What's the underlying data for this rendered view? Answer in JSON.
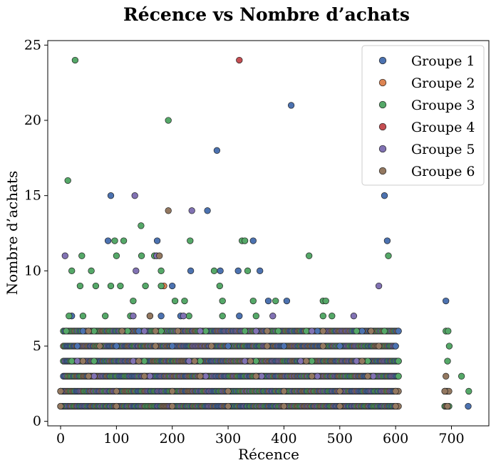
{
  "chart_data": {
    "type": "scatter",
    "title": "Récence vs Nombre d’achats",
    "xlabel": "Récence",
    "ylabel": "Nombre d’achats",
    "xlim": [
      -23,
      767
    ],
    "ylim": [
      -0.3,
      25.3
    ],
    "xticks": [
      0,
      100,
      200,
      300,
      400,
      500,
      600,
      700
    ],
    "yticks": [
      0,
      5,
      10,
      15,
      20,
      25
    ],
    "grid": false,
    "legend_position": "top-right",
    "colors": {
      "Groupe 1": "#4c72b0",
      "Groupe 2": "#dd8452",
      "Groupe 3": "#55a868",
      "Groupe 4": "#c44e52",
      "Groupe 5": "#8172b3",
      "Groupe 6": "#937860"
    },
    "series": [
      {
        "name": "Groupe 1",
        "points": [
          [
            413,
            21
          ],
          [
            280,
            18
          ],
          [
            90,
            15
          ],
          [
            580,
            15
          ],
          [
            263,
            14
          ],
          [
            85,
            12
          ],
          [
            173,
            12
          ],
          [
            345,
            12
          ],
          [
            585,
            12
          ],
          [
            233,
            10
          ],
          [
            318,
            10
          ],
          [
            357,
            10
          ],
          [
            286,
            10
          ],
          [
            200,
            9
          ],
          [
            372,
            8
          ],
          [
            405,
            8
          ],
          [
            690,
            8
          ],
          [
            320,
            7
          ],
          [
            180,
            7
          ],
          [
            20,
            7
          ],
          [
            215,
            7
          ],
          [
            40,
            6
          ],
          [
            140,
            6
          ],
          [
            250,
            6
          ],
          [
            350,
            6
          ],
          [
            460,
            6
          ],
          [
            540,
            6
          ],
          [
            605,
            6
          ],
          [
            30,
            5
          ],
          [
            100,
            5
          ],
          [
            200,
            5
          ],
          [
            300,
            5
          ],
          [
            400,
            5
          ],
          [
            500,
            5
          ],
          [
            600,
            5
          ],
          [
            730,
            1
          ]
        ]
      },
      {
        "name": "Groupe 2",
        "points": [
          [
            185,
            9
          ]
        ]
      },
      {
        "name": "Groupe 3",
        "points": [
          [
            26,
            24
          ],
          [
            193,
            20
          ],
          [
            13,
            16
          ],
          [
            144,
            13
          ],
          [
            97,
            12
          ],
          [
            113,
            12
          ],
          [
            232,
            12
          ],
          [
            325,
            12
          ],
          [
            330,
            12
          ],
          [
            38,
            11
          ],
          [
            100,
            11
          ],
          [
            145,
            11
          ],
          [
            168,
            11
          ],
          [
            445,
            11
          ],
          [
            587,
            11
          ],
          [
            20,
            10
          ],
          [
            55,
            10
          ],
          [
            180,
            10
          ],
          [
            275,
            10
          ],
          [
            335,
            10
          ],
          [
            35,
            9
          ],
          [
            63,
            9
          ],
          [
            90,
            9
          ],
          [
            107,
            9
          ],
          [
            152,
            9
          ],
          [
            180,
            9
          ],
          [
            285,
            9
          ],
          [
            130,
            8
          ],
          [
            205,
            8
          ],
          [
            222,
            8
          ],
          [
            290,
            8
          ],
          [
            345,
            8
          ],
          [
            385,
            8
          ],
          [
            470,
            8
          ],
          [
            475,
            8
          ],
          [
            15,
            7
          ],
          [
            40,
            7
          ],
          [
            80,
            7
          ],
          [
            125,
            7
          ],
          [
            160,
            7
          ],
          [
            230,
            7
          ],
          [
            290,
            7
          ],
          [
            350,
            7
          ],
          [
            470,
            7
          ],
          [
            486,
            7
          ],
          [
            10,
            6
          ],
          [
            60,
            6
          ],
          [
            120,
            6
          ],
          [
            180,
            6
          ],
          [
            260,
            6
          ],
          [
            330,
            6
          ],
          [
            390,
            6
          ],
          [
            440,
            6
          ],
          [
            530,
            6
          ],
          [
            580,
            6
          ],
          [
            690,
            6
          ],
          [
            694,
            6
          ],
          [
            696,
            5
          ],
          [
            20,
            4
          ],
          [
            60,
            4
          ],
          [
            150,
            4
          ],
          [
            250,
            4
          ],
          [
            350,
            4
          ],
          [
            450,
            4
          ],
          [
            550,
            4
          ],
          [
            605,
            4
          ],
          [
            693,
            4
          ],
          [
            605,
            3
          ],
          [
            718,
            3
          ],
          [
            731,
            2
          ]
        ]
      },
      {
        "name": "Groupe 4",
        "points": [
          [
            320,
            24
          ]
        ]
      },
      {
        "name": "Groupe 5",
        "points": [
          [
            133,
            15
          ],
          [
            235,
            14
          ],
          [
            8,
            11
          ],
          [
            135,
            10
          ],
          [
            172,
            11
          ],
          [
            570,
            9
          ],
          [
            130,
            7
          ],
          [
            220,
            7
          ],
          [
            380,
            7
          ],
          [
            525,
            7
          ],
          [
            50,
            6
          ],
          [
            150,
            6
          ],
          [
            250,
            6
          ],
          [
            350,
            6
          ],
          [
            450,
            6
          ],
          [
            555,
            6
          ],
          [
            30,
            4
          ],
          [
            130,
            4
          ],
          [
            230,
            4
          ],
          [
            330,
            4
          ],
          [
            430,
            4
          ],
          [
            530,
            4
          ],
          [
            60,
            3
          ],
          [
            160,
            3
          ],
          [
            260,
            3
          ],
          [
            360,
            3
          ],
          [
            460,
            3
          ],
          [
            560,
            3
          ]
        ]
      },
      {
        "name": "Groupe 6",
        "points": [
          [
            193,
            14
          ],
          [
            177,
            11
          ],
          [
            160,
            7
          ],
          [
            50,
            6
          ],
          [
            110,
            6
          ],
          [
            170,
            6
          ],
          [
            210,
            6
          ],
          [
            370,
            6
          ],
          [
            470,
            6
          ],
          [
            556,
            6
          ],
          [
            70,
            5
          ],
          [
            170,
            5
          ],
          [
            270,
            5
          ],
          [
            370,
            5
          ],
          [
            470,
            5
          ],
          [
            570,
            5
          ],
          [
            40,
            4
          ],
          [
            140,
            4
          ],
          [
            240,
            4
          ],
          [
            340,
            4
          ],
          [
            440,
            4
          ],
          [
            540,
            4
          ],
          [
            50,
            3
          ],
          [
            150,
            3
          ],
          [
            250,
            3
          ],
          [
            350,
            3
          ],
          [
            450,
            3
          ],
          [
            550,
            3
          ],
          [
            690,
            3
          ],
          [
            0,
            2
          ],
          [
            100,
            2
          ],
          [
            200,
            2
          ],
          [
            300,
            2
          ],
          [
            400,
            2
          ],
          [
            500,
            2
          ],
          [
            600,
            2
          ],
          [
            688,
            2
          ],
          [
            0,
            1
          ],
          [
            100,
            1
          ],
          [
            200,
            1
          ],
          [
            300,
            1
          ],
          [
            400,
            1
          ],
          [
            500,
            1
          ],
          [
            600,
            1
          ],
          [
            693,
            1
          ]
        ]
      }
    ],
    "dense_bands": [
      {
        "y": 1,
        "from": 0,
        "to": 605,
        "series": [
          "Groupe 1",
          "Groupe 3",
          "Groupe 5",
          "Groupe 6"
        ]
      },
      {
        "y": 1,
        "from": 688,
        "to": 697,
        "series": [
          "Groupe 3",
          "Groupe 6"
        ]
      },
      {
        "y": 2,
        "from": 0,
        "to": 605,
        "series": [
          "Groupe 1",
          "Groupe 3",
          "Groupe 5",
          "Groupe 6"
        ]
      },
      {
        "y": 2,
        "from": 688,
        "to": 696,
        "series": [
          "Groupe 6"
        ]
      },
      {
        "y": 3,
        "from": 5,
        "to": 605,
        "series": [
          "Groupe 1",
          "Groupe 3",
          "Groupe 5",
          "Groupe 6"
        ]
      },
      {
        "y": 4,
        "from": 5,
        "to": 605,
        "series": [
          "Groupe 1",
          "Groupe 3",
          "Groupe 5",
          "Groupe 6"
        ]
      },
      {
        "y": 5,
        "from": 5,
        "to": 600,
        "series": [
          "Groupe 1",
          "Groupe 3",
          "Groupe 5",
          "Groupe 6"
        ]
      },
      {
        "y": 6,
        "from": 5,
        "to": 605,
        "series": [
          "Groupe 1",
          "Groupe 3",
          "Groupe 5",
          "Groupe 6"
        ]
      }
    ]
  }
}
